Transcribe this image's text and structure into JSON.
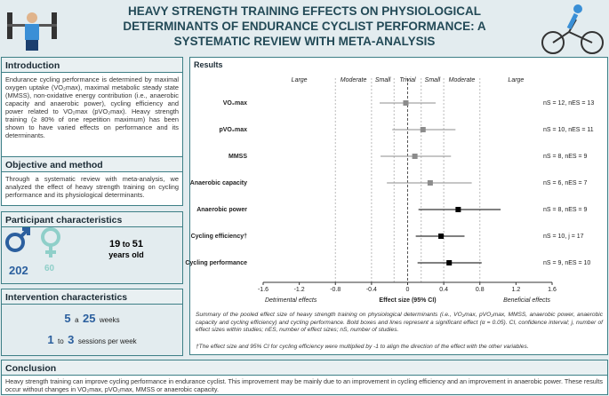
{
  "header": {
    "title": "HEAVY STRENGTH TRAINING EFFECTS ON PHYSIOLOGICAL DETERMINANTS OF ENDURANCE CYCLIST PERFORMANCE: A SYSTEMATIC REVIEW WITH META-ANALYSIS"
  },
  "introduction": {
    "heading": "Introduction",
    "text": "Endurance cycling performance is determined by maximal oxygen uptake (VO₂max), maximal metabolic steady state (MMSS), non-oxidative energy contribution (i.e., anaerobic capacity and anaerobic power), cycling efficiency and power related to VO₂max (pVO₂max). Heavy strength training (≥ 80% of one repetition maximum) has been shown to have varied effects on performance and its determinants."
  },
  "objective": {
    "heading": "Objective and method",
    "text": "Through a systematic review with meta-analysis, we analyzed the effect of heavy strength training on cycling performance and its physiological determinants."
  },
  "participants": {
    "heading": "Participant characteristics",
    "male": 202,
    "female": 60,
    "age_min": 19,
    "age_sep": "to",
    "age_max": 51,
    "age_unit": "years old"
  },
  "intervention": {
    "heading": "Intervention characteristics",
    "weeks_min": 5,
    "weeks_sep": "a",
    "weeks_max": 25,
    "weeks_unit": "weeks",
    "sessions_min": 1,
    "sessions_sep": "to",
    "sessions_max": 3,
    "sessions_unit": "sessions per week"
  },
  "results": {
    "heading": "Results",
    "caption": "Summary of the pooled effect size of heavy strength training on physiological determinants (i.e., VO₂max, pVO₂max, MMSS, anaerobic power, anaerobic capacity and cycling efficiency) and cycling performance. Bold boxes and lines represent a significant effect (α = 0.05). CI, confidence interval; j, number of effect sizes within studies; nES, number of effect sizes; nS, number of studies.",
    "footnote": "†The effect size and 95% CI for cycling efficiency were multiplied by -1 to align the direction of the effect with the other variables."
  },
  "chart_data": {
    "type": "forest",
    "categories": [
      "VO₂max",
      "pVO₂max",
      "MMSS",
      "Anaerobic capacity",
      "Anaerobic power",
      "Cycling efficiency†",
      "Cycling performance"
    ],
    "values": [
      -0.02,
      0.17,
      0.08,
      0.25,
      0.56,
      0.37,
      0.46
    ],
    "ci_lower": [
      -0.31,
      -0.17,
      -0.3,
      -0.23,
      0.12,
      0.09,
      0.11
    ],
    "ci_upper": [
      0.31,
      0.53,
      0.48,
      0.71,
      1.03,
      0.63,
      0.82
    ],
    "colors": [
      "#8c8c8c",
      "#8c8c8c",
      "#8c8c8c",
      "#8c8c8c",
      "#000000",
      "#000000",
      "#000000"
    ],
    "n_labels": [
      "nS = 12, nES = 13",
      "nS = 10, nES = 11",
      "nS = 8, nES = 9",
      "nS = 6, nES = 7",
      "nS = 8, nES = 9",
      "nS = 10, j = 17",
      "nS = 9, nES = 10"
    ],
    "band_labels": [
      "Large",
      "Moderate",
      "Small",
      "Trivial",
      "Small",
      "Moderate",
      "Large"
    ],
    "thresholds": [
      -0.8,
      -0.4,
      -0.15,
      0.15,
      0.4,
      0.8
    ],
    "xlim": [
      -1.6,
      1.6
    ],
    "xticks": [
      -1.6,
      -1.2,
      -0.8,
      -0.4,
      0,
      0.4,
      0.8,
      1.2,
      1.6
    ],
    "xlabel": "Effect size (95% CI)",
    "left_note": "Detrimental effects",
    "right_note": "Beneficial effects"
  },
  "conclusion": {
    "heading": "Conclusion",
    "text": "Heavy strength training can improve cycling performance in endurance cyclist. This improvement may be mainly due to an improvement in cycling efficiency and an improvement in anaerobic power. These results occur without changes in VO₂max, pVO₂max, MMSS or anaerobic capacity."
  }
}
